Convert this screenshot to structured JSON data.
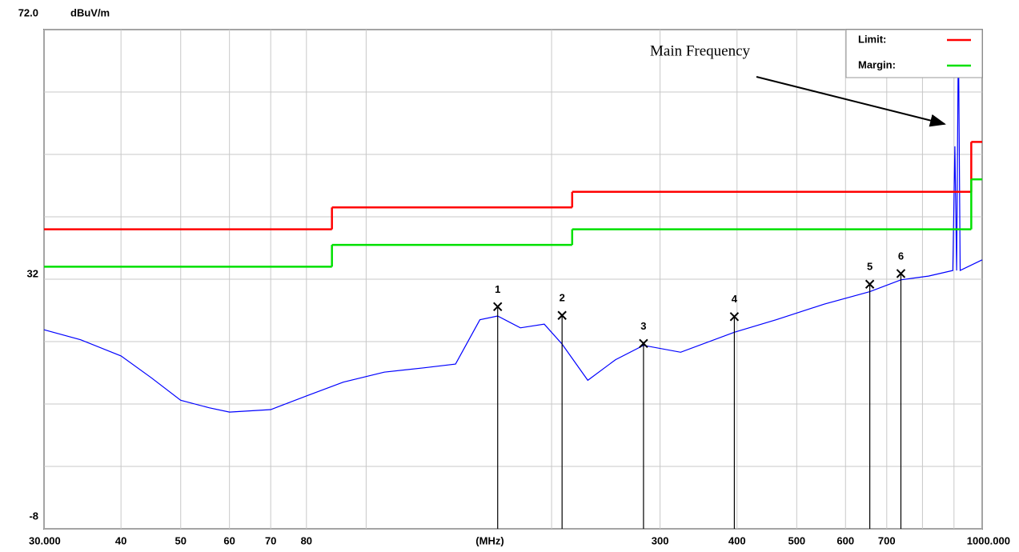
{
  "chart_data": {
    "type": "line",
    "ylabel": "dBuV/m",
    "xlabel": "(MHz)",
    "xlim": [
      30,
      1000
    ],
    "ylim": [
      -8,
      72
    ],
    "xscale": "log",
    "grid": true,
    "xticks": [
      {
        "value": 30,
        "label": "30.000"
      },
      40,
      50,
      60,
      70,
      80,
      300,
      400,
      500,
      600,
      700,
      {
        "value": 1000,
        "label": "1000.000"
      }
    ],
    "xgrid": [
      100,
      200,
      800,
      900
    ],
    "yticks": [
      {
        "value": 72,
        "label": "72.0"
      },
      32,
      -8
    ],
    "ygrid": [
      62,
      52,
      42,
      22,
      12,
      2
    ],
    "legend": "top-right",
    "series": [
      {
        "name": "Limit:",
        "color": "#ff0000",
        "x": [
          30,
          88,
          216,
          960
        ],
        "values": [
          40,
          43.5,
          46,
          54
        ]
      },
      {
        "name": "Margin:",
        "color": "#00e000",
        "x": [
          30,
          88,
          216,
          960
        ],
        "values": [
          34,
          37.5,
          40,
          48
        ]
      }
    ],
    "trace": {
      "color": "#0000ff",
      "x": [
        30,
        34.4,
        40,
        44.8,
        50,
        55.6,
        60,
        70,
        80,
        91.8,
        107,
        124,
        139.7,
        153,
        163.5,
        178,
        194.6,
        208,
        229,
        254,
        282,
        324,
        396,
        463,
        554,
        657,
        738,
        818,
        896,
        903,
        909,
        915,
        921,
        1000
      ],
      "values": [
        23.9,
        22.3,
        19.7,
        16.2,
        12.6,
        11.4,
        10.7,
        11.1,
        13.3,
        15.5,
        17.1,
        17.8,
        18.4,
        25.5,
        26.1,
        24.2,
        24.8,
        21.6,
        15.8,
        19.1,
        21.4,
        20.3,
        23.5,
        25.5,
        28.0,
        30.0,
        31.9,
        32.5,
        33.4,
        53.3,
        33.4,
        72,
        33.4,
        35.1
      ]
    },
    "markers": [
      {
        "label": "1",
        "x": 163.5,
        "value": 27.6
      },
      {
        "label": "2",
        "x": 208,
        "value": 26.2
      },
      {
        "label": "3",
        "x": 282,
        "value": 21.7
      },
      {
        "label": "4",
        "x": 396,
        "value": 26
      },
      {
        "label": "5",
        "x": 657,
        "value": 31.2
      },
      {
        "label": "6",
        "x": 738,
        "value": 32.9
      }
    ],
    "annotation": "Main Frequency"
  }
}
